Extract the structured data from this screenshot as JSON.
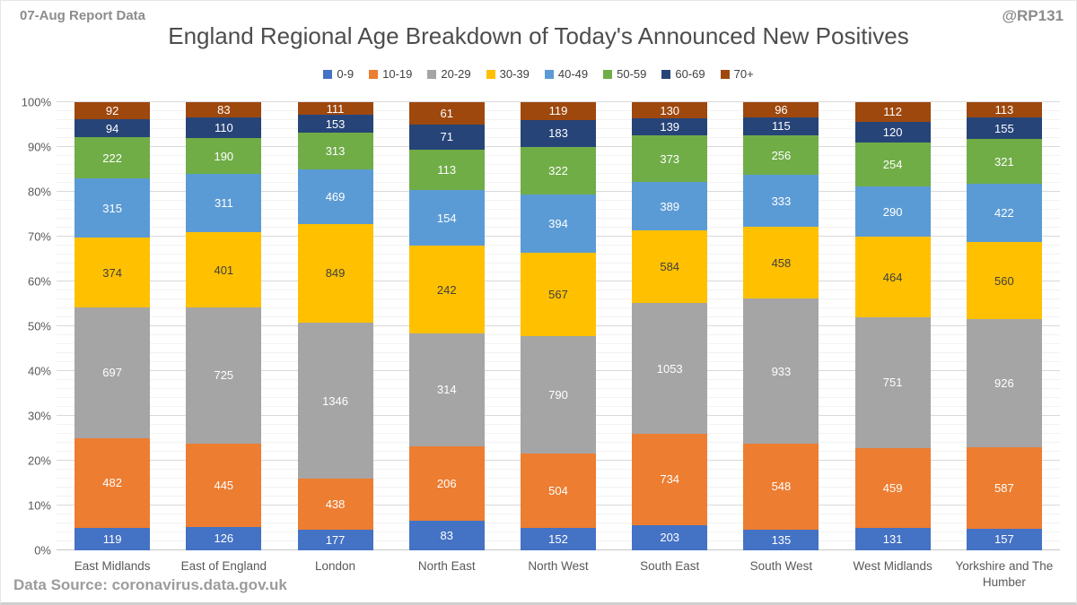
{
  "header": {
    "report_label": "07-Aug Report Data",
    "attribution": "@RP131"
  },
  "footer": {
    "text": "Data Source: coronavirus.data.gov.uk"
  },
  "chart_data": {
    "type": "bar",
    "subtype": "stacked-100-percent",
    "title": "England Regional Age Breakdown of Today's Announced New Positives",
    "legend_position": "top",
    "grid": true,
    "y_axis": {
      "min": 0,
      "max": 100,
      "major_step": 10,
      "minor_step": 2,
      "ticks": [
        "0%",
        "10%",
        "20%",
        "30%",
        "40%",
        "50%",
        "60%",
        "70%",
        "80%",
        "90%",
        "100%"
      ]
    },
    "categories": [
      "East Midlands",
      "East of England",
      "London",
      "North East",
      "North West",
      "South East",
      "South West",
      "West Midlands",
      "Yorkshire and The Humber"
    ],
    "series": [
      {
        "name": "0-9",
        "color": "#4472C4",
        "label_color": "#FFFFFF",
        "values": [
          119,
          126,
          177,
          83,
          152,
          203,
          135,
          131,
          157
        ]
      },
      {
        "name": "10-19",
        "color": "#ED7D31",
        "label_color": "#FFFFFF",
        "values": [
          482,
          445,
          438,
          206,
          504,
          734,
          548,
          459,
          587
        ]
      },
      {
        "name": "20-29",
        "color": "#A5A5A5",
        "label_color": "#FFFFFF",
        "values": [
          697,
          725,
          1346,
          314,
          790,
          1053,
          933,
          751,
          926
        ]
      },
      {
        "name": "30-39",
        "color": "#FFC000",
        "label_color": "#404040",
        "values": [
          374,
          401,
          849,
          242,
          567,
          584,
          458,
          464,
          560
        ]
      },
      {
        "name": "40-49",
        "color": "#5B9BD5",
        "label_color": "#FFFFFF",
        "values": [
          315,
          311,
          469,
          154,
          394,
          389,
          333,
          290,
          422
        ]
      },
      {
        "name": "50-59",
        "color": "#70AD47",
        "label_color": "#FFFFFF",
        "values": [
          222,
          190,
          313,
          113,
          322,
          373,
          256,
          254,
          321
        ]
      },
      {
        "name": "60-69",
        "color": "#264478",
        "label_color": "#FFFFFF",
        "values": [
          94,
          110,
          153,
          71,
          183,
          139,
          115,
          120,
          155
        ]
      },
      {
        "name": "70+",
        "color": "#9E480E",
        "label_color": "#FFFFFF",
        "values": [
          92,
          83,
          111,
          61,
          119,
          130,
          96,
          112,
          113
        ]
      }
    ]
  }
}
